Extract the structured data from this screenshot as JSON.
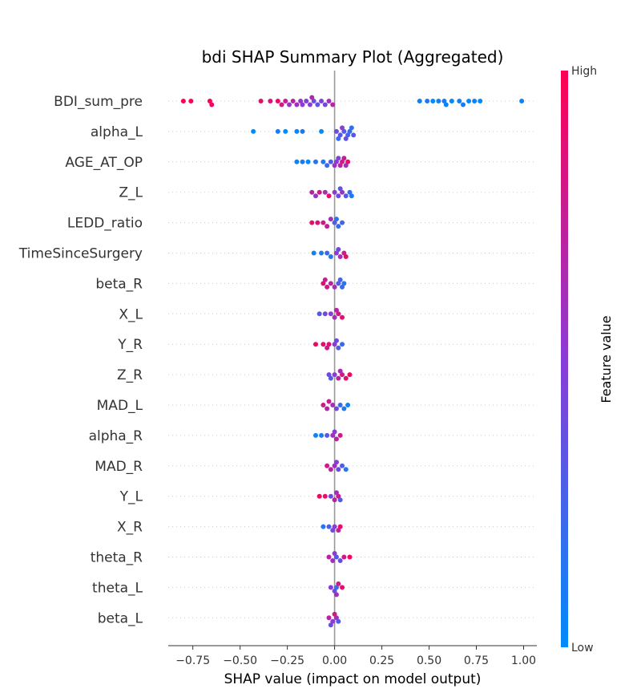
{
  "chart_data": {
    "type": "scatter",
    "title": "bdi SHAP Summary Plot (Aggregated)",
    "xlabel": "SHAP value (impact on model output)",
    "xlim": [
      -0.88,
      1.07
    ],
    "xticks": [
      "−0.75",
      "−0.50",
      "−0.25",
      "0.00",
      "0.25",
      "0.50",
      "0.75",
      "1.00"
    ],
    "xtick_values": [
      -0.75,
      -0.5,
      -0.25,
      0,
      0.25,
      0.5,
      0.75,
      1.0
    ],
    "colorbar": {
      "title": "Feature value",
      "high_label": "High",
      "low_label": "Low",
      "high_color": "#ff0052",
      "low_color": "#008bfb"
    },
    "features": [
      {
        "name": "BDI_sum_pre",
        "points": [
          [
            -0.8,
            1.0
          ],
          [
            -0.76,
            1.0
          ],
          [
            -0.66,
            1.0
          ],
          [
            -0.65,
            0.95
          ],
          [
            -0.39,
            0.9
          ],
          [
            -0.34,
            0.85
          ],
          [
            -0.3,
            0.9
          ],
          [
            -0.28,
            0.8
          ],
          [
            -0.26,
            0.75
          ],
          [
            -0.22,
            0.7
          ],
          [
            -0.2,
            0.6
          ],
          [
            -0.18,
            0.55
          ],
          [
            -0.17,
            0.5
          ],
          [
            -0.15,
            0.45
          ],
          [
            -0.13,
            0.5
          ],
          [
            -0.11,
            0.4
          ],
          [
            -0.09,
            0.35
          ],
          [
            -0.07,
            0.45
          ],
          [
            -0.05,
            0.4
          ],
          [
            -0.03,
            0.6
          ],
          [
            -0.01,
            0.7
          ],
          [
            0.45,
            0.05
          ],
          [
            0.49,
            0.1
          ],
          [
            0.52,
            0.0
          ],
          [
            0.55,
            0.05
          ],
          [
            0.58,
            0.1
          ],
          [
            0.62,
            0.0
          ],
          [
            0.66,
            0.05
          ],
          [
            0.68,
            0.1
          ],
          [
            0.71,
            0.0
          ],
          [
            0.74,
            0.05
          ],
          [
            0.77,
            0.0
          ],
          [
            0.99,
            0.05
          ],
          [
            -0.24,
            0.55
          ],
          [
            -0.12,
            0.65
          ],
          [
            0.59,
            0.05
          ]
        ]
      },
      {
        "name": "alpha_L",
        "points": [
          [
            -0.43,
            0.0
          ],
          [
            -0.3,
            0.05
          ],
          [
            -0.26,
            0.0
          ],
          [
            -0.2,
            0.05
          ],
          [
            -0.17,
            0.1
          ],
          [
            -0.07,
            0.0
          ],
          [
            0.01,
            0.4
          ],
          [
            0.03,
            0.35
          ],
          [
            0.05,
            0.3
          ],
          [
            0.07,
            0.25
          ],
          [
            0.08,
            0.2
          ],
          [
            0.1,
            0.3
          ],
          [
            0.04,
            0.5
          ],
          [
            0.02,
            0.2
          ],
          [
            0.06,
            0.35
          ],
          [
            0.09,
            0.15
          ]
        ]
      },
      {
        "name": "AGE_AT_OP",
        "points": [
          [
            -0.2,
            0.05
          ],
          [
            -0.17,
            0.1
          ],
          [
            -0.14,
            0.0
          ],
          [
            -0.1,
            0.15
          ],
          [
            -0.06,
            0.1
          ],
          [
            -0.04,
            0.2
          ],
          [
            -0.02,
            0.3
          ],
          [
            0.01,
            0.5
          ],
          [
            0.03,
            0.7
          ],
          [
            0.04,
            0.8
          ],
          [
            0.06,
            0.6
          ],
          [
            0.07,
            0.9
          ],
          [
            0.02,
            0.45
          ],
          [
            0.05,
            0.75
          ],
          [
            0.0,
            0.55
          ]
        ]
      },
      {
        "name": "Z_L",
        "points": [
          [
            -0.12,
            0.7
          ],
          [
            -0.08,
            0.8
          ],
          [
            -0.05,
            0.6
          ],
          [
            -0.03,
            0.9
          ],
          [
            0.0,
            0.5
          ],
          [
            0.02,
            0.4
          ],
          [
            0.04,
            0.6
          ],
          [
            0.06,
            0.3
          ],
          [
            0.08,
            0.2
          ],
          [
            0.09,
            0.1
          ],
          [
            -0.1,
            0.55
          ],
          [
            0.03,
            0.35
          ]
        ]
      },
      {
        "name": "LEDD_ratio",
        "points": [
          [
            -0.12,
            0.9
          ],
          [
            -0.09,
            0.85
          ],
          [
            -0.06,
            0.8
          ],
          [
            -0.04,
            0.75
          ],
          [
            0.0,
            0.3
          ],
          [
            0.02,
            0.2
          ],
          [
            0.04,
            0.25
          ],
          [
            -0.02,
            0.6
          ],
          [
            0.01,
            0.15
          ]
        ]
      },
      {
        "name": "TimeSinceSurgery",
        "points": [
          [
            -0.11,
            0.05
          ],
          [
            -0.07,
            0.1
          ],
          [
            -0.04,
            0.2
          ],
          [
            -0.02,
            0.15
          ],
          [
            0.01,
            0.5
          ],
          [
            0.03,
            0.6
          ],
          [
            0.05,
            0.8
          ],
          [
            0.06,
            0.9
          ],
          [
            0.02,
            0.4
          ]
        ]
      },
      {
        "name": "beta_R",
        "points": [
          [
            -0.06,
            0.9
          ],
          [
            -0.04,
            0.8
          ],
          [
            -0.02,
            0.7
          ],
          [
            0.0,
            0.6
          ],
          [
            0.02,
            0.3
          ],
          [
            0.04,
            0.2
          ],
          [
            0.05,
            0.1
          ],
          [
            -0.05,
            0.75
          ],
          [
            0.03,
            0.25
          ]
        ]
      },
      {
        "name": "X_L",
        "points": [
          [
            -0.08,
            0.3
          ],
          [
            -0.05,
            0.4
          ],
          [
            -0.02,
            0.5
          ],
          [
            0.0,
            0.6
          ],
          [
            0.02,
            0.8
          ],
          [
            0.04,
            0.9
          ],
          [
            0.01,
            0.7
          ]
        ]
      },
      {
        "name": "Y_R",
        "points": [
          [
            -0.1,
            0.95
          ],
          [
            -0.06,
            0.9
          ],
          [
            -0.03,
            0.85
          ],
          [
            0.0,
            0.5
          ],
          [
            0.02,
            0.3
          ],
          [
            0.04,
            0.2
          ],
          [
            -0.04,
            0.8
          ],
          [
            0.01,
            0.4
          ]
        ]
      },
      {
        "name": "Z_R",
        "points": [
          [
            -0.03,
            0.4
          ],
          [
            0.0,
            0.5
          ],
          [
            0.02,
            0.7
          ],
          [
            0.04,
            0.8
          ],
          [
            0.06,
            0.9
          ],
          [
            0.08,
            0.95
          ],
          [
            -0.02,
            0.3
          ],
          [
            0.03,
            0.65
          ]
        ]
      },
      {
        "name": "MAD_L",
        "points": [
          [
            -0.06,
            0.8
          ],
          [
            -0.04,
            0.7
          ],
          [
            -0.01,
            0.6
          ],
          [
            0.01,
            0.4
          ],
          [
            0.03,
            0.2
          ],
          [
            0.05,
            0.1
          ],
          [
            0.07,
            0.05
          ],
          [
            -0.03,
            0.75
          ]
        ]
      },
      {
        "name": "alpha_R",
        "points": [
          [
            -0.1,
            0.05
          ],
          [
            -0.07,
            0.1
          ],
          [
            -0.04,
            0.3
          ],
          [
            -0.01,
            0.6
          ],
          [
            0.01,
            0.7
          ],
          [
            0.03,
            0.8
          ],
          [
            0.0,
            0.5
          ]
        ]
      },
      {
        "name": "MAD_R",
        "points": [
          [
            -0.04,
            0.8
          ],
          [
            -0.02,
            0.7
          ],
          [
            0.0,
            0.6
          ],
          [
            0.02,
            0.4
          ],
          [
            0.04,
            0.3
          ],
          [
            0.06,
            0.1
          ],
          [
            0.01,
            0.5
          ]
        ]
      },
      {
        "name": "Y_L",
        "points": [
          [
            -0.08,
            0.95
          ],
          [
            -0.05,
            0.9
          ],
          [
            -0.02,
            0.4
          ],
          [
            0.0,
            0.7
          ],
          [
            0.02,
            0.8
          ],
          [
            0.03,
            0.3
          ],
          [
            0.01,
            0.6
          ]
        ]
      },
      {
        "name": "X_R",
        "points": [
          [
            -0.06,
            0.1
          ],
          [
            -0.03,
            0.3
          ],
          [
            0.0,
            0.5
          ],
          [
            0.02,
            0.7
          ],
          [
            0.03,
            0.9
          ],
          [
            -0.01,
            0.4
          ]
        ]
      },
      {
        "name": "theta_R",
        "points": [
          [
            -0.03,
            0.7
          ],
          [
            -0.01,
            0.6
          ],
          [
            0.01,
            0.3
          ],
          [
            0.03,
            0.4
          ],
          [
            0.05,
            0.8
          ],
          [
            0.08,
            0.95
          ],
          [
            0.0,
            0.5
          ]
        ]
      },
      {
        "name": "theta_L",
        "points": [
          [
            -0.02,
            0.5
          ],
          [
            0.0,
            0.4
          ],
          [
            0.01,
            0.2
          ],
          [
            0.02,
            0.8
          ],
          [
            0.04,
            0.9
          ],
          [
            0.01,
            0.6
          ]
        ]
      },
      {
        "name": "beta_L",
        "points": [
          [
            -0.03,
            0.7
          ],
          [
            -0.01,
            0.5
          ],
          [
            0.01,
            0.6
          ],
          [
            0.02,
            0.3
          ],
          [
            0.0,
            0.8
          ],
          [
            -0.02,
            0.4
          ]
        ]
      }
    ]
  }
}
